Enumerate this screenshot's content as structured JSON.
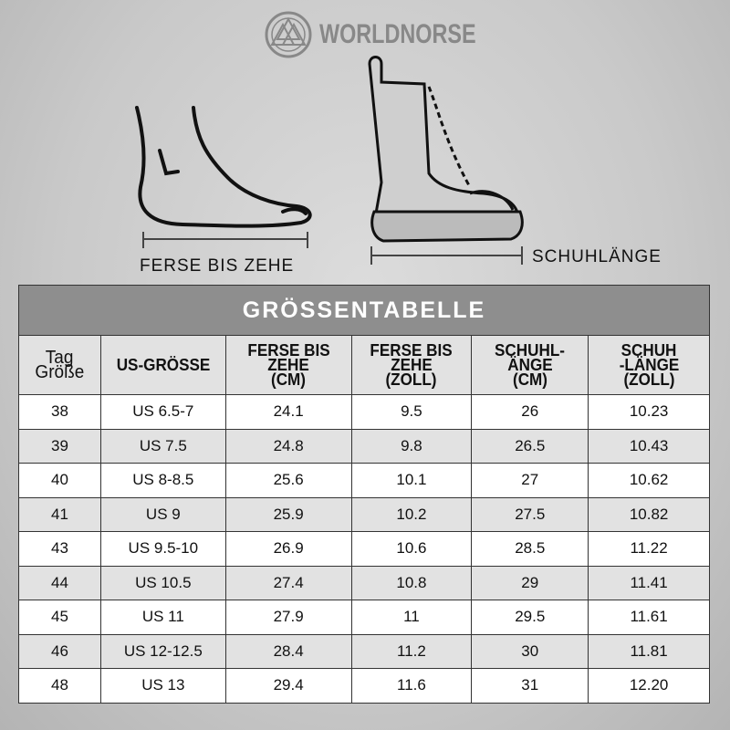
{
  "brand": "WORLDNORSE",
  "foot_label": "FERSE BIS ZEHE",
  "boot_label": "SCHUHLÄNGE",
  "table": {
    "title": "GRÖSSENTABELLE",
    "headers": [
      [
        "Tag",
        "Größe"
      ],
      [
        "US-GRÖSSE"
      ],
      [
        "FERSE BIS",
        "ZEHE",
        "(CM)"
      ],
      [
        "FERSE BIS",
        "ZEHE",
        "(ZOLL)"
      ],
      [
        "SCHUHL-",
        "ÄNGE",
        "(CM)"
      ],
      [
        "SCHUH",
        "-LÄNGE",
        "(ZOLL)"
      ]
    ],
    "rows": [
      [
        "38",
        "US 6.5-7",
        "24.1",
        "9.5",
        "26",
        "10.23"
      ],
      [
        "39",
        "US 7.5",
        "24.8",
        "9.8",
        "26.5",
        "10.43"
      ],
      [
        "40",
        "US 8-8.5",
        "25.6",
        "10.1",
        "27",
        "10.62"
      ],
      [
        "41",
        "US 9",
        "25.9",
        "10.2",
        "27.5",
        "10.82"
      ],
      [
        "43",
        "US 9.5-10",
        "26.9",
        "10.6",
        "28.5",
        "11.22"
      ],
      [
        "44",
        "US 10.5",
        "27.4",
        "10.8",
        "29",
        "11.41"
      ],
      [
        "45",
        "US 11",
        "27.9",
        "11",
        "29.5",
        "11.61"
      ],
      [
        "46",
        "US 12-12.5",
        "28.4",
        "11.2",
        "30",
        "11.81"
      ],
      [
        "48",
        "US 13",
        "29.4",
        "11.6",
        "31",
        "12.20"
      ]
    ]
  },
  "colors": {
    "title_bar": "#8e8e8e",
    "header_bg": "#e2e2e2",
    "alt_row": "#e2e2e2"
  }
}
